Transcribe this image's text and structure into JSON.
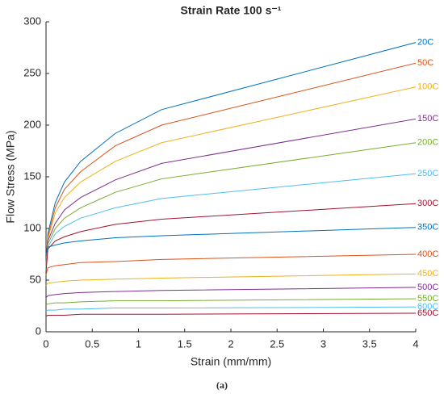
{
  "chart_data": {
    "type": "line",
    "title": "Strain Rate 100 s⁻¹",
    "xlabel": "Strain (mm/mm)",
    "ylabel": "Flow Stress (MPa)",
    "caption": "(a)",
    "x": [
      0,
      0.02,
      0.1,
      0.2,
      0.375,
      0.75,
      1.25,
      4
    ],
    "xlim": [
      0,
      4
    ],
    "xticks": [
      0,
      0.5,
      1,
      1.5,
      2,
      2.5,
      3,
      3.5,
      4
    ],
    "ylim": [
      0,
      300
    ],
    "yticks": [
      0,
      50,
      100,
      150,
      200,
      250,
      300
    ],
    "grid": false,
    "series": [
      {
        "name": "20C",
        "color": "#0072BD",
        "values": [
          65,
          95,
          125,
          145,
          165,
          192,
          215,
          280
        ]
      },
      {
        "name": "50C",
        "color": "#D95319",
        "values": [
          65,
          92,
          120,
          138,
          155,
          180,
          200,
          260
        ]
      },
      {
        "name": "100C",
        "color": "#EDB120",
        "values": [
          63,
          90,
          115,
          130,
          145,
          165,
          183,
          237
        ]
      },
      {
        "name": "150C",
        "color": "#7E2F8E",
        "values": [
          62,
          88,
          105,
          118,
          130,
          147,
          163,
          206
        ]
      },
      {
        "name": "200C",
        "color": "#77AC30",
        "values": [
          60,
          85,
          100,
          110,
          120,
          135,
          148,
          183
        ]
      },
      {
        "name": "250C",
        "color": "#4DBEEE",
        "values": [
          60,
          82,
          95,
          102,
          110,
          120,
          129,
          153
        ]
      },
      {
        "name": "300C",
        "color": "#A2142F",
        "values": [
          58,
          80,
          88,
          92,
          97,
          104,
          109,
          124
        ]
      },
      {
        "name": "350C",
        "color": "#0072BD",
        "values": [
          75,
          82,
          84,
          86,
          88,
          91,
          93,
          101
        ]
      },
      {
        "name": "400C",
        "color": "#D95319",
        "values": [
          55,
          62,
          64,
          65,
          67,
          68,
          70,
          75
        ]
      },
      {
        "name": "450C",
        "color": "#EDB120",
        "values": [
          45,
          47,
          48,
          49,
          50,
          51,
          52,
          56
        ]
      },
      {
        "name": "500C",
        "color": "#7E2F8E",
        "values": [
          33,
          35,
          36,
          37,
          38,
          39,
          40,
          43
        ]
      },
      {
        "name": "550C",
        "color": "#77AC30",
        "values": [
          26,
          27,
          28,
          28,
          29,
          30,
          30,
          32
        ]
      },
      {
        "name": "600C",
        "color": "#4DBEEE",
        "values": [
          20,
          21,
          21,
          22,
          22,
          23,
          23,
          24
        ]
      },
      {
        "name": "650C",
        "color": "#A2142F",
        "values": [
          15,
          16,
          16,
          16,
          17,
          17,
          17,
          18
        ]
      }
    ]
  }
}
